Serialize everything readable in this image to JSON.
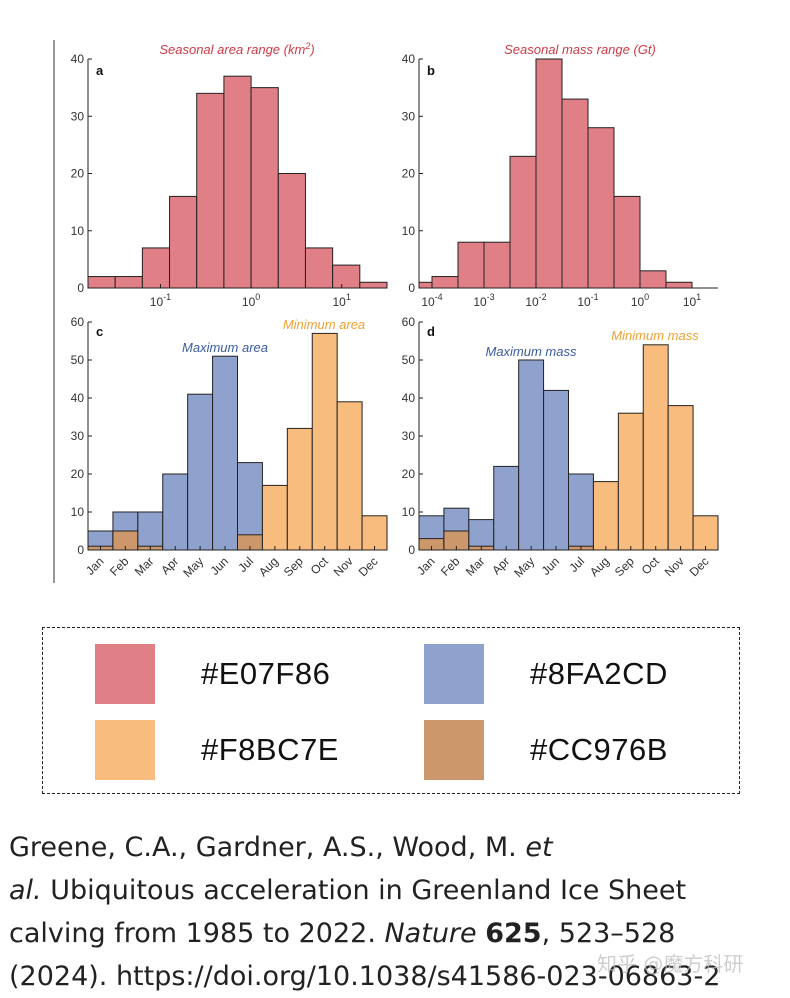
{
  "chart_data": [
    {
      "panel": "a",
      "type": "bar",
      "title": "Seasonal area range (km",
      "title_sup": "2",
      "title_suffix": ")",
      "xscale": "log",
      "bin_edges_log10": [
        -1.8,
        -1.5,
        -1.2,
        -0.9,
        -0.6,
        -0.3,
        0.0,
        0.3,
        0.6,
        0.9,
        1.2,
        1.5
      ],
      "values": [
        2,
        2,
        7,
        16,
        34,
        37,
        35,
        20,
        7,
        4,
        1
      ],
      "color": "#E07F86",
      "ylim": [
        0,
        40
      ],
      "yticks": [
        0,
        10,
        20,
        30,
        40
      ],
      "xticks": [
        {
          "pos": -1,
          "base": "10",
          "exp": "-1"
        },
        {
          "pos": 0,
          "base": "10",
          "exp": "0"
        },
        {
          "pos": 1,
          "base": "10",
          "exp": "1"
        }
      ]
    },
    {
      "panel": "b",
      "type": "bar",
      "title": "Seasonal mass range (Gt)",
      "xscale": "log",
      "bin_edges_log10": [
        -4.25,
        -4.0,
        -3.75,
        -3.5,
        -3.25,
        -3.0,
        -2.75,
        -2.5,
        -2.25,
        -2.0,
        -1.75,
        -1.5,
        -1.25,
        -1.0,
        -0.75,
        -0.5,
        -0.25,
        0.0,
        0.25,
        0.5,
        0.75,
        1.0,
        1.25,
        1.5
      ],
      "bars": [
        {
          "x0": -4.25,
          "x1": -4.0,
          "value": 1
        },
        {
          "x0": -4.0,
          "x1": -3.5,
          "value": 2
        },
        {
          "x0": -3.5,
          "x1": -3.0,
          "value": 8
        },
        {
          "x0": -3.0,
          "x1": -2.5,
          "value": 8
        },
        {
          "x0": -2.5,
          "x1": -2.0,
          "value": 23
        },
        {
          "x0": -2.0,
          "x1": -1.5,
          "value": 40
        },
        {
          "x0": -1.5,
          "x1": -1.0,
          "value": 33
        },
        {
          "x0": -1.0,
          "x1": -0.5,
          "value": 28
        },
        {
          "x0": -0.5,
          "x1": 0.0,
          "value": 16
        },
        {
          "x0": 0.0,
          "x1": 0.5,
          "value": 3
        },
        {
          "x0": 0.5,
          "x1": 1.0,
          "value": 1
        }
      ],
      "color": "#E07F86",
      "ylim": [
        0,
        40
      ],
      "yticks": [
        0,
        10,
        20,
        30,
        40
      ],
      "xticks": [
        {
          "pos": -4,
          "base": "10",
          "exp": "-4"
        },
        {
          "pos": -3,
          "base": "10",
          "exp": "-3"
        },
        {
          "pos": -2,
          "base": "10",
          "exp": "-2"
        },
        {
          "pos": -1,
          "base": "10",
          "exp": "-1"
        },
        {
          "pos": 0,
          "base": "10",
          "exp": "0"
        },
        {
          "pos": 1,
          "base": "10",
          "exp": "1"
        }
      ]
    },
    {
      "panel": "c",
      "type": "bar",
      "categories": [
        "Jan",
        "Feb",
        "Mar",
        "Apr",
        "May",
        "Jun",
        "Jul",
        "Aug",
        "Sep",
        "Oct",
        "Nov",
        "Dec"
      ],
      "series": [
        {
          "name": "Maximum area",
          "values": [
            5,
            10,
            10,
            20,
            41,
            51,
            23,
            0,
            0,
            0,
            0,
            0
          ],
          "color": "#8FA2CD"
        },
        {
          "name": "Minimum area",
          "values": [
            1,
            5,
            1,
            0,
            0,
            0,
            4,
            17,
            32,
            57,
            39,
            9
          ],
          "color": "#F8BC7E"
        }
      ],
      "overlap_color": "#CC976B",
      "ylim": [
        0,
        60
      ],
      "yticks": [
        0,
        10,
        20,
        30,
        40,
        50,
        60
      ],
      "labels": {
        "max": "Maximum area",
        "min": "Minimum area"
      }
    },
    {
      "panel": "d",
      "type": "bar",
      "categories": [
        "Jan",
        "Feb",
        "Mar",
        "Apr",
        "May",
        "Jun",
        "Jul",
        "Aug",
        "Sep",
        "Oct",
        "Nov",
        "Dec"
      ],
      "series": [
        {
          "name": "Maximum mass",
          "values": [
            9,
            11,
            8,
            22,
            50,
            42,
            20,
            0,
            0,
            0,
            0,
            0
          ],
          "color": "#8FA2CD"
        },
        {
          "name": "Minimum mass",
          "values": [
            3,
            5,
            1,
            0,
            0,
            0,
            1,
            18,
            36,
            54,
            38,
            9
          ],
          "color": "#F8BC7E"
        }
      ],
      "overlap_color": "#CC976B",
      "ylim": [
        0,
        60
      ],
      "yticks": [
        0,
        10,
        20,
        30,
        40,
        50,
        60
      ],
      "labels": {
        "max": "Maximum mass",
        "min": "Minimum mass"
      }
    }
  ],
  "colors": {
    "title_red": "#CC3A45",
    "label_blue": "#3B5BA5",
    "label_orange": "#F0A030"
  },
  "legend": [
    {
      "color": "#E07F86",
      "label": "#E07F86"
    },
    {
      "color": "#8FA2CD",
      "label": "#8FA2CD"
    },
    {
      "color": "#F8BC7E",
      "label": "#F8BC7E"
    },
    {
      "color": "#CC976B",
      "label": "#CC976B"
    }
  ],
  "citation": {
    "line1_a": "Greene, C.A., Gardner, A.S., Wood, M. ",
    "line1_b": "et",
    "line2_a": "al.",
    "line2_b": " Ubiquitous acceleration in Greenland Ice Sheet",
    "line3_a": "calving from 1985 to 2022. ",
    "line3_b": "Nature",
    "line3_c": " ",
    "line3_d": "625",
    "line3_e": ", 523–528",
    "line4": "(2024). https://doi.org/10.1038/s41586-023-06863-2"
  },
  "watermark": "知乎 @魔方科研"
}
